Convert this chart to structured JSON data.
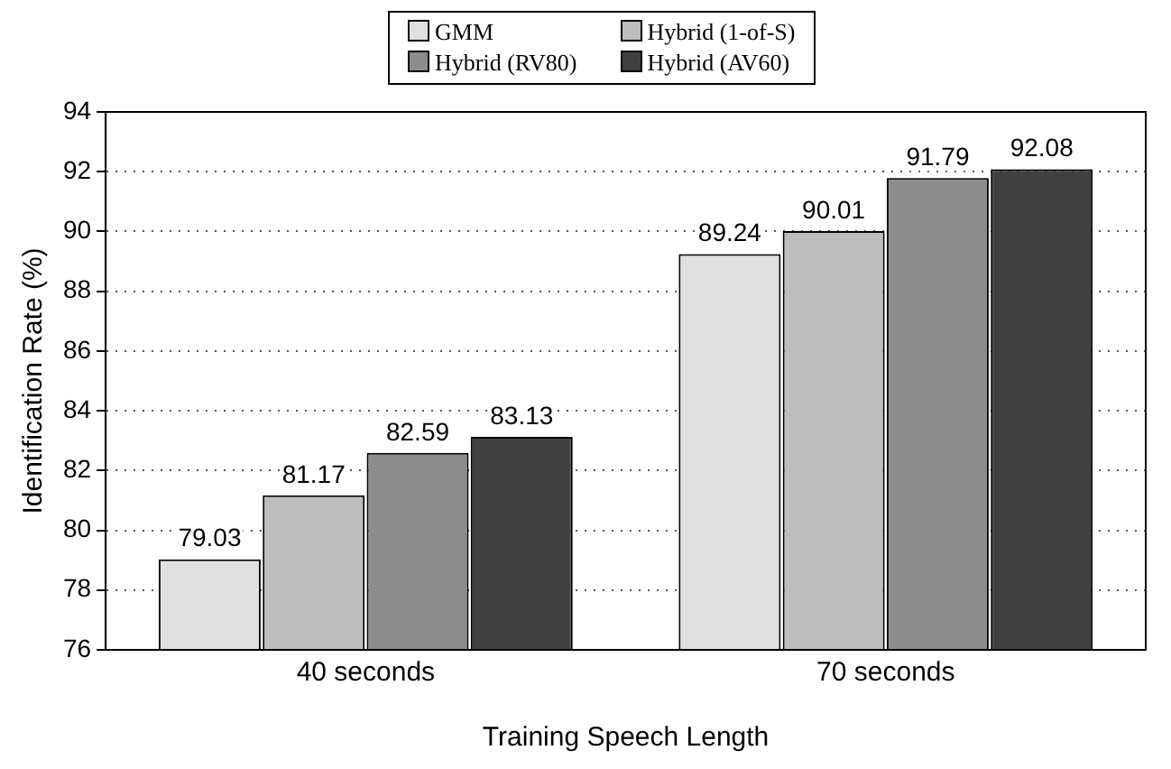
{
  "chart_data": {
    "type": "bar",
    "xlabel": "Training Speech Length",
    "ylabel": "Identification Rate (%)",
    "categories": [
      "40 seconds",
      "70 seconds"
    ],
    "series": [
      {
        "name": "GMM",
        "color": "#e0e0e0",
        "values": [
          79.03,
          89.24
        ]
      },
      {
        "name": "Hybrid (1-of-S)",
        "color": "#bdbdbd",
        "values": [
          81.17,
          90.01
        ]
      },
      {
        "name": "Hybrid (RV80)",
        "color": "#8c8c8c",
        "values": [
          82.59,
          91.79
        ]
      },
      {
        "name": "Hybrid (AV60)",
        "color": "#404040",
        "values": [
          83.13,
          92.08
        ]
      }
    ],
    "ylim": [
      76,
      94
    ],
    "yticks": [
      76,
      78,
      80,
      82,
      84,
      86,
      88,
      90,
      92,
      94
    ],
    "grid": "y",
    "legend": "top",
    "data_labels": true
  }
}
